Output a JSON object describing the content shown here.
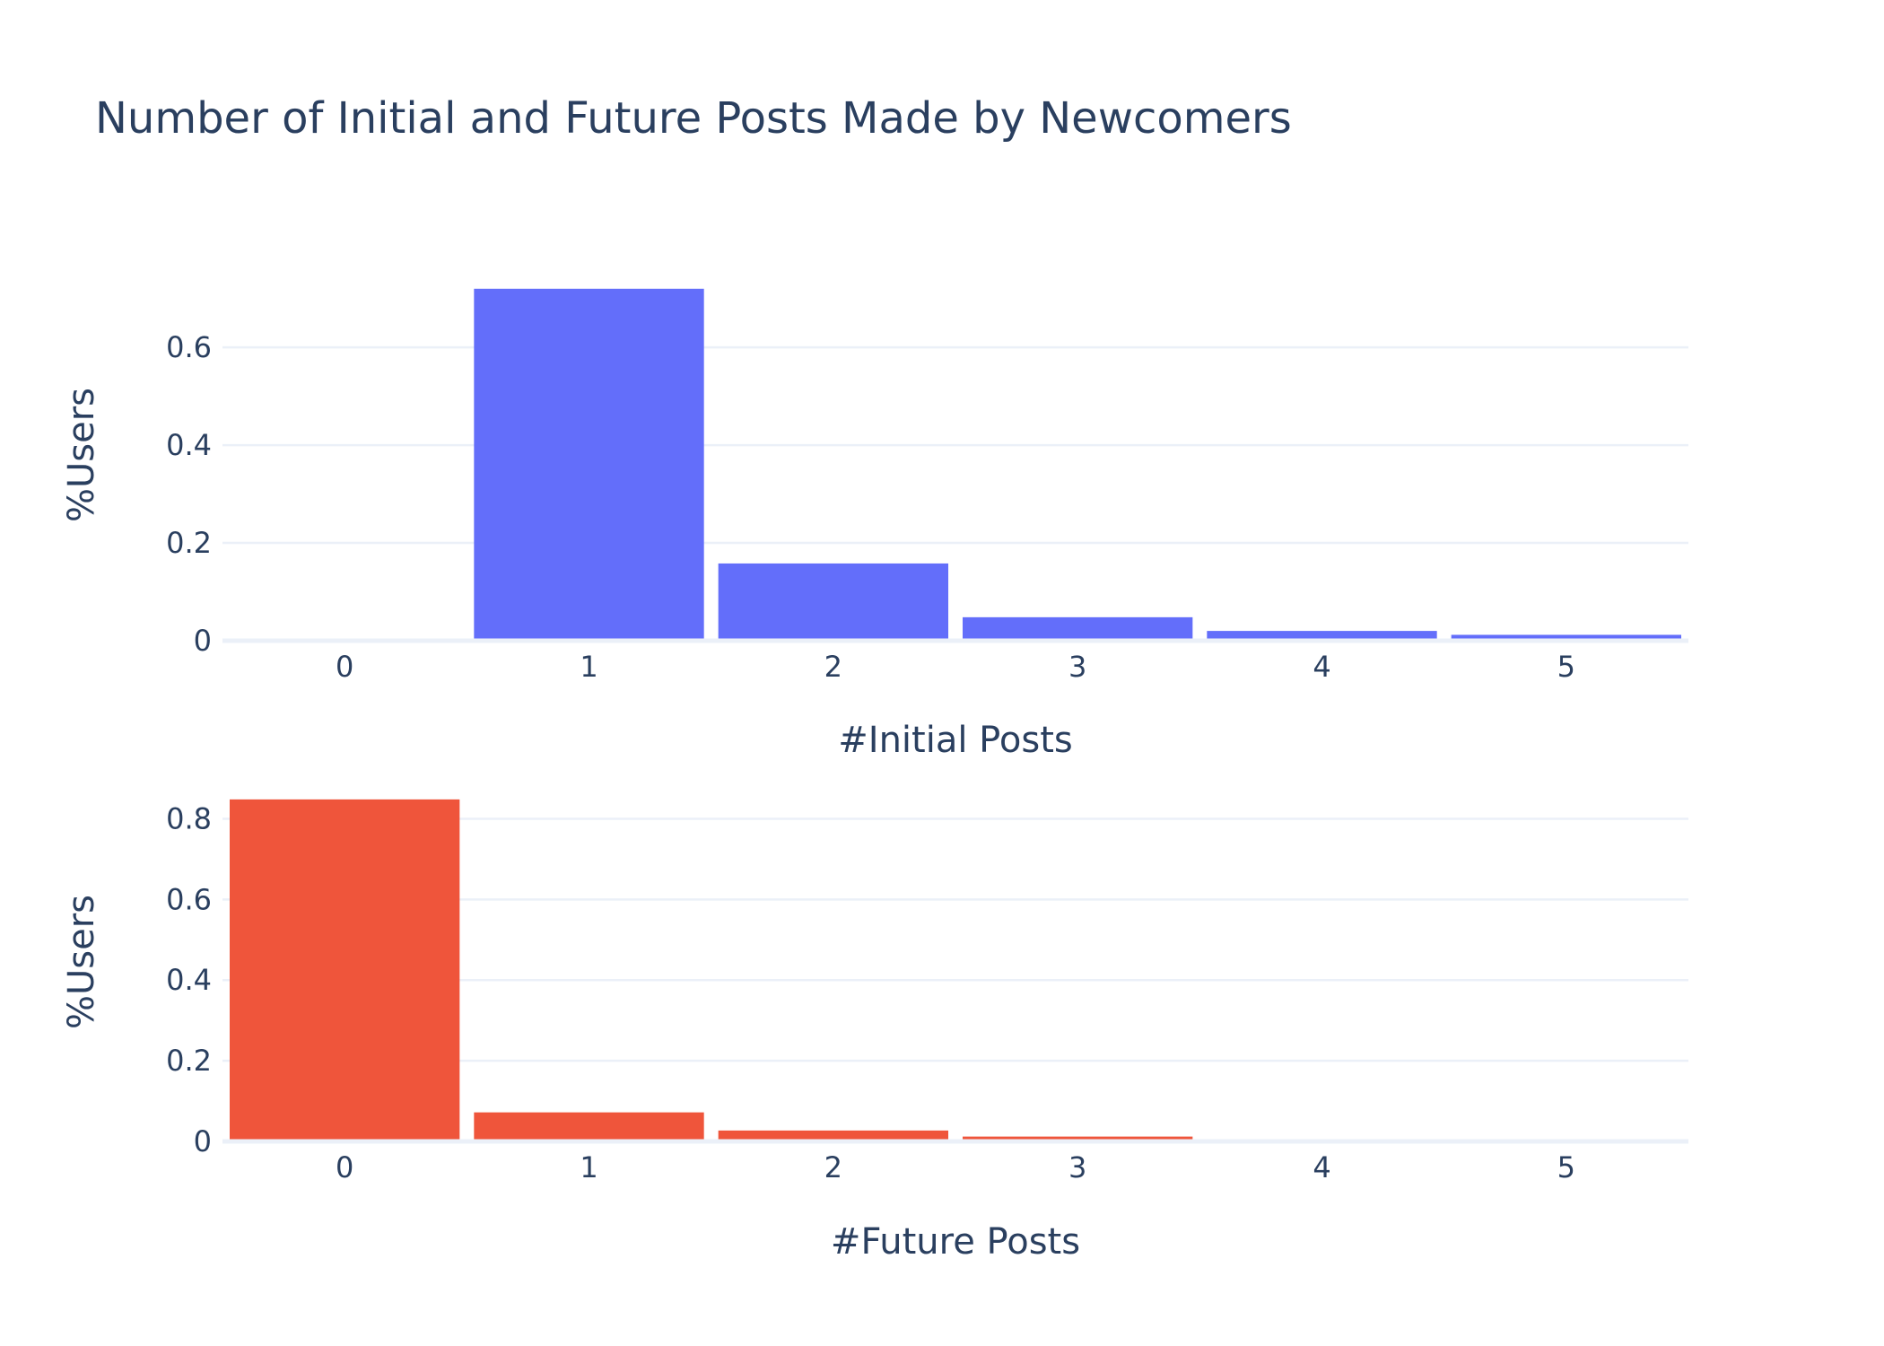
{
  "title": "Number of Initial and Future Posts Made by Newcomers",
  "chart_data": [
    {
      "type": "bar",
      "categories": [
        "0",
        "1",
        "2",
        "3",
        "4",
        "5"
      ],
      "values": [
        0.0,
        0.72,
        0.158,
        0.048,
        0.02,
        0.012
      ],
      "xlabel": "#Initial Posts",
      "ylabel": "%Users",
      "ylim": [
        0,
        0.76
      ],
      "yticks": [
        0,
        0.2,
        0.4,
        0.6
      ],
      "ytick_labels": [
        "0",
        "0.2",
        "0.4",
        "0.6"
      ],
      "color": "#636efa",
      "grid": true
    },
    {
      "type": "bar",
      "categories": [
        "0",
        "1",
        "2",
        "3",
        "4",
        "5"
      ],
      "values": [
        0.848,
        0.072,
        0.027,
        0.012,
        0.005,
        0.003
      ],
      "xlabel": "#Future Posts",
      "ylabel": "%Users",
      "ylim": [
        0,
        0.89
      ],
      "yticks": [
        0,
        0.2,
        0.4,
        0.6,
        0.8
      ],
      "ytick_labels": [
        "0",
        "0.2",
        "0.4",
        "0.6",
        "0.8"
      ],
      "color": "#ef553b",
      "grid": true
    }
  ]
}
